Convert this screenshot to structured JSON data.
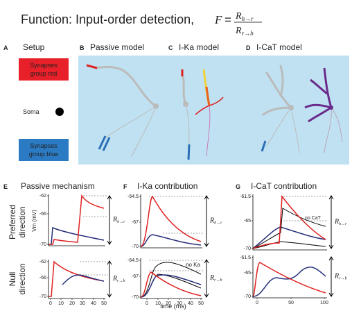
{
  "title": {
    "text": "Function: Input-order detection,",
    "formula": {
      "lhs": "F",
      "equals": "=",
      "numerator": {
        "symbol": "R",
        "subscript": "h→r"
      },
      "denominator": {
        "symbol": "R",
        "subscript": "r→b"
      }
    }
  },
  "panels": {
    "A": {
      "letter": "A",
      "title": "Setup",
      "synapses_red": [
        "Synapses",
        "group red"
      ],
      "soma": "Soma",
      "synapses_blue": [
        "Synapses",
        "group blue"
      ]
    },
    "B": {
      "letter": "B",
      "title": "Passive model"
    },
    "C": {
      "letter": "C",
      "title": "I-Ka model"
    },
    "D": {
      "letter": "D",
      "title": "I-CaT model"
    },
    "E": {
      "letter": "E",
      "title": "Passive mechanism",
      "y_label": "Vm (mV)",
      "top": {
        "yticks": [
          -62,
          -66,
          -70
        ],
        "ratio": {
          "symbol": "R",
          "subscript": "h→r"
        }
      },
      "bottom": {
        "yticks": [
          -62,
          -66,
          -70
        ],
        "xticks": [
          0,
          10,
          20,
          30,
          40,
          50
        ],
        "ratio": {
          "symbol": "R",
          "subscript": "r→b"
        }
      }
    },
    "F": {
      "letter": "F",
      "title": "I-Ka contribution",
      "x_label": "time (ms)",
      "top": {
        "yticks": [
          -64.5,
          -67,
          -70
        ],
        "ratio": {
          "symbol": "R",
          "subscript": "h→r"
        }
      },
      "bottom": {
        "yticks": [
          -64.5,
          -67,
          -70
        ],
        "xticks": [
          0,
          10,
          20,
          30,
          40,
          50
        ],
        "annotation": "no Ka",
        "ratio": {
          "symbol": "R",
          "subscript": "r→b"
        }
      }
    },
    "G": {
      "letter": "G",
      "title": "I-CaT contribution",
      "top": {
        "yticks": [
          -61.5,
          -65,
          -70
        ],
        "annotation": "no CaT",
        "ratio": {
          "symbol": "R",
          "subscript": "h→r"
        }
      },
      "bottom": {
        "yticks": [
          -61.5,
          -65,
          -70
        ],
        "xticks": [
          0,
          50,
          100
        ],
        "ratio": {
          "symbol": "R",
          "subscript": "r→b"
        }
      }
    }
  },
  "row_labels": {
    "preferred": [
      "Preferred",
      "direction"
    ],
    "null": [
      "Null",
      "direction"
    ]
  }
}
